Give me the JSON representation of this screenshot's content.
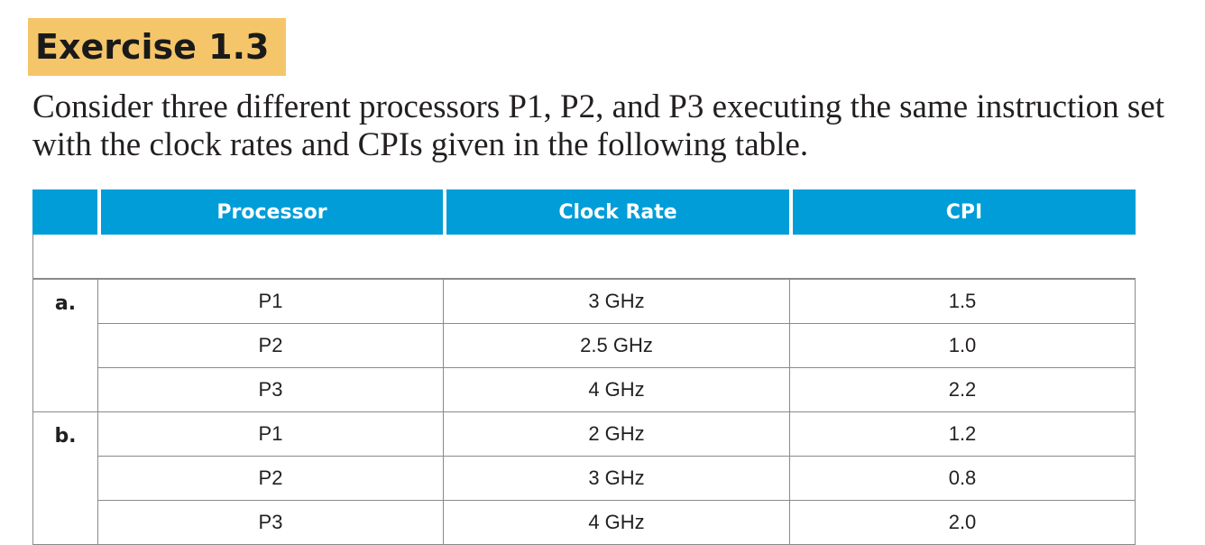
{
  "exercise_title": "Exercise 1.3",
  "intro_text": "Consider three different processors P1, P2, and P3 executing the same instruction set with the clock rates and CPIs given in the following table.",
  "table": {
    "headers": [
      "",
      "Processor",
      "Clock Rate",
      "CPI"
    ],
    "header_color": "#009dd8",
    "heading_highlight_color": "#f5c56a",
    "groups": [
      {
        "label": "a.",
        "rows": [
          {
            "processor": "P1",
            "clock_rate": "3 GHz",
            "cpi": "1.5"
          },
          {
            "processor": "P2",
            "clock_rate": "2.5 GHz",
            "cpi": "1.0"
          },
          {
            "processor": "P3",
            "clock_rate": "4 GHz",
            "cpi": "2.2"
          }
        ]
      },
      {
        "label": "b.",
        "rows": [
          {
            "processor": "P1",
            "clock_rate": "2 GHz",
            "cpi": "1.2"
          },
          {
            "processor": "P2",
            "clock_rate": "3 GHz",
            "cpi": "0.8"
          },
          {
            "processor": "P3",
            "clock_rate": "4 GHz",
            "cpi": "2.0"
          }
        ]
      }
    ]
  }
}
